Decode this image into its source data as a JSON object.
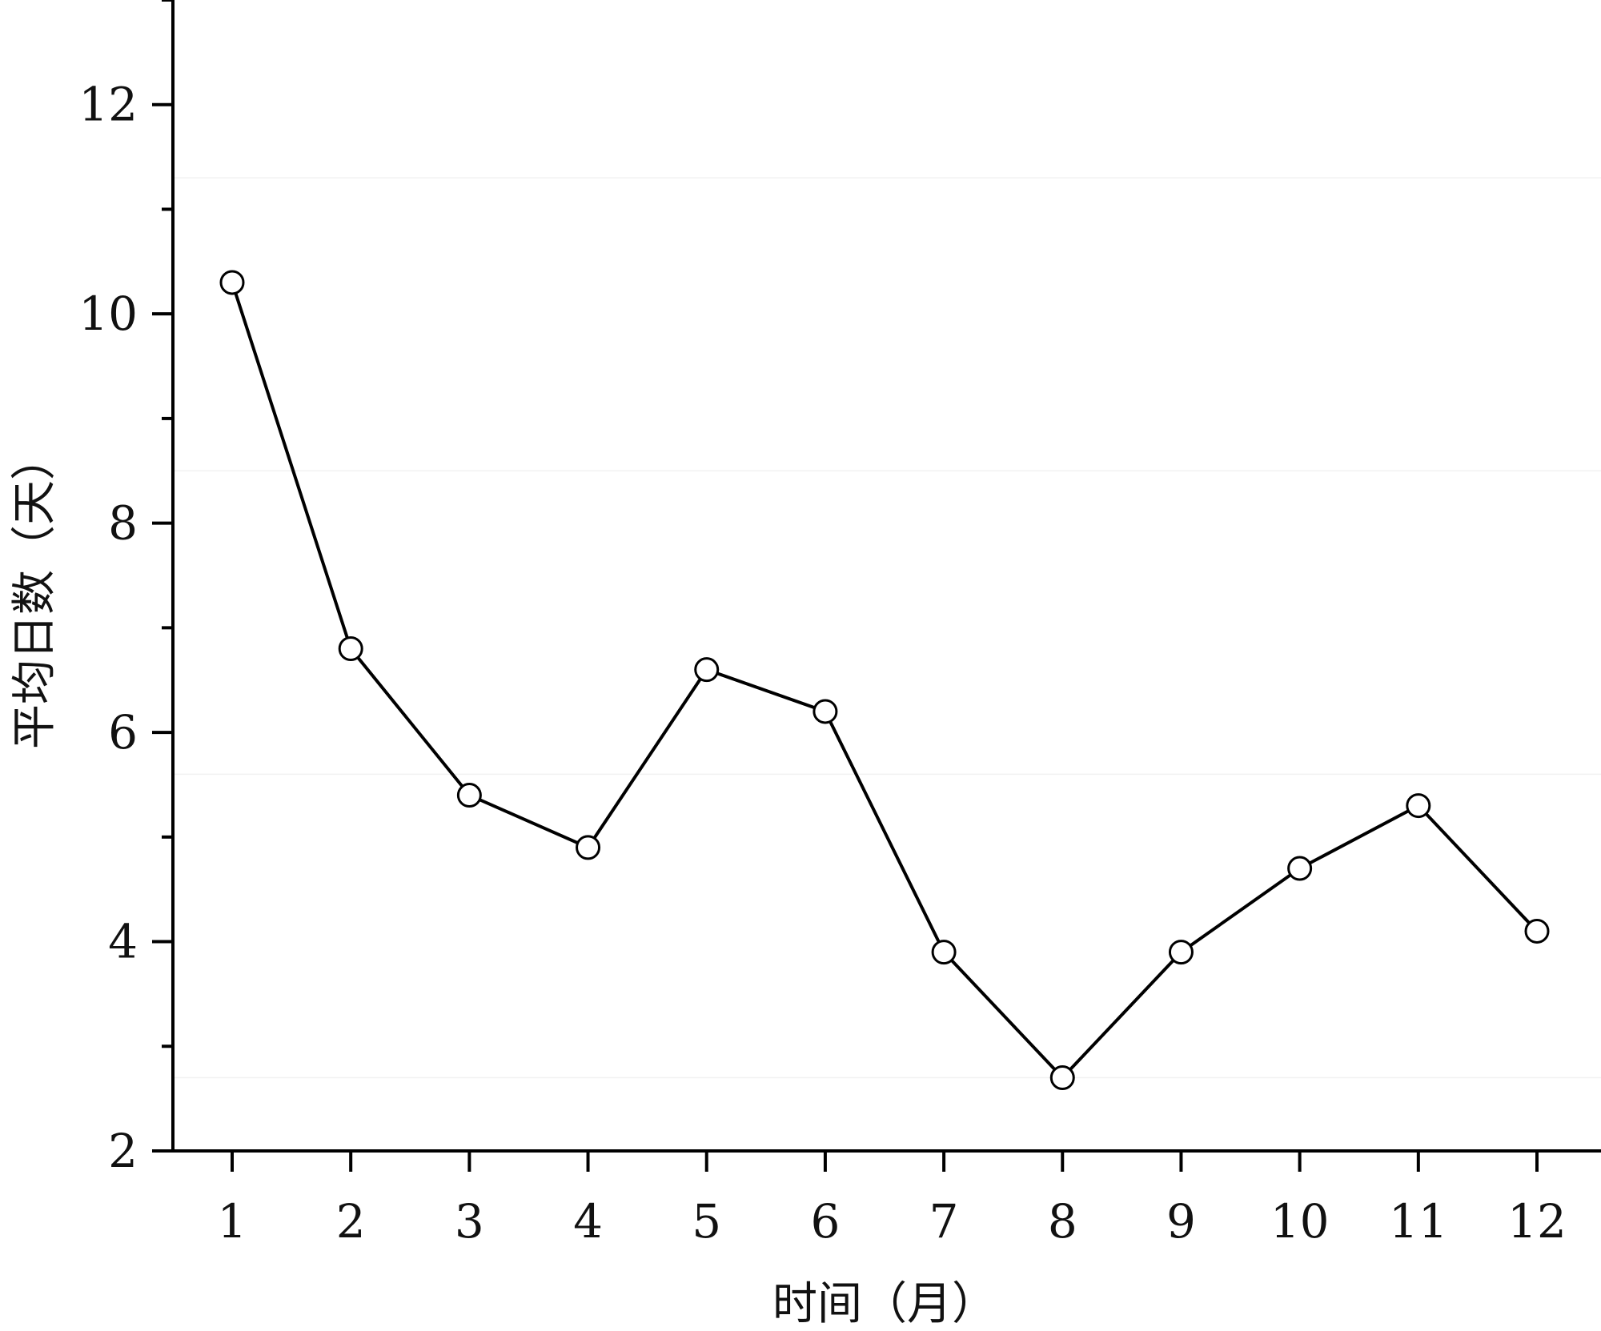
{
  "chart_data": {
    "type": "line",
    "title": "",
    "xlabel": "时间（月）",
    "ylabel": "平均日数（天）",
    "x": [
      1,
      2,
      3,
      4,
      5,
      6,
      7,
      8,
      9,
      10,
      11,
      12
    ],
    "x_tick_labels": [
      "1",
      "2",
      "3",
      "4",
      "5",
      "6",
      "7",
      "8",
      "9",
      "10",
      "11",
      "12"
    ],
    "y_ticks": [
      2,
      4,
      6,
      8,
      10,
      12
    ],
    "y_tick_labels": [
      "2",
      "4",
      "6",
      "8",
      "10",
      "12"
    ],
    "ylim": [
      2,
      13
    ],
    "series": [
      {
        "values": [
          10.3,
          6.8,
          5.4,
          4.9,
          6.6,
          6.2,
          3.9,
          2.7,
          3.9,
          4.7,
          5.3,
          4.1
        ],
        "color": "#000000",
        "marker": "open-circle"
      }
    ],
    "grid": false,
    "legend": "none"
  }
}
